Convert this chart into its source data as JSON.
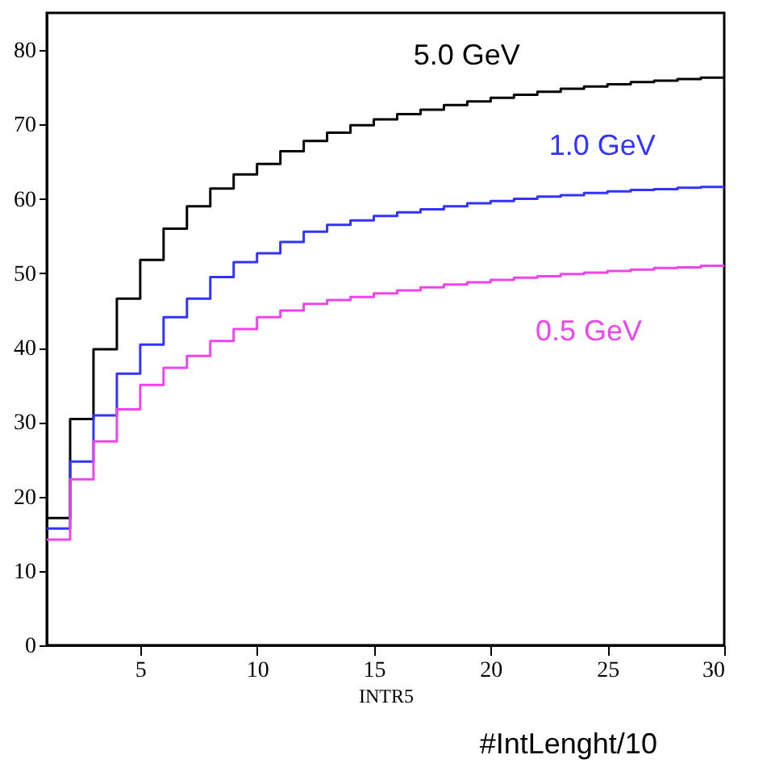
{
  "chart_data": {
    "type": "step",
    "xlabel": "INTR5",
    "x": [
      1,
      2,
      3,
      4,
      5,
      6,
      7,
      8,
      9,
      10,
      11,
      12,
      13,
      14,
      15,
      16,
      17,
      18,
      19,
      20,
      21,
      22,
      23,
      24,
      25,
      26,
      27,
      28,
      29,
      30
    ],
    "series": [
      {
        "name": "5.0 GeV",
        "color": "#000000",
        "values": [
          17.1,
          30.4,
          39.8,
          46.6,
          51.8,
          56.0,
          59.0,
          61.4,
          63.3,
          64.7,
          66.4,
          67.8,
          68.9,
          69.9,
          70.7,
          71.4,
          72.0,
          72.6,
          73.1,
          73.6,
          74.0,
          74.4,
          74.8,
          75.1,
          75.4,
          75.7,
          75.9,
          76.1,
          76.3,
          76.3
        ]
      },
      {
        "name": "1.0 GeV",
        "color": "#3333ff",
        "values": [
          15.7,
          24.7,
          30.9,
          36.5,
          40.4,
          44.1,
          46.6,
          49.5,
          51.5,
          52.7,
          54.2,
          55.6,
          56.5,
          57.1,
          57.7,
          58.2,
          58.6,
          59.0,
          59.4,
          59.7,
          60.0,
          60.3,
          60.5,
          60.8,
          61.0,
          61.2,
          61.3,
          61.5,
          61.6,
          61.6
        ]
      },
      {
        "name": "0.5 GeV",
        "color": "#ee44ee",
        "values": [
          14.2,
          22.3,
          27.4,
          31.7,
          35.0,
          37.3,
          38.9,
          40.9,
          42.5,
          44.1,
          45.0,
          45.9,
          46.4,
          46.8,
          47.3,
          47.7,
          48.1,
          48.5,
          48.8,
          49.1,
          49.4,
          49.6,
          49.9,
          50.1,
          50.3,
          50.5,
          50.7,
          50.8,
          51.0,
          51.0
        ]
      }
    ],
    "xlim": [
      1,
      30
    ],
    "xticks": [
      5,
      10,
      15,
      20,
      25,
      30
    ],
    "ylim": [
      0,
      85
    ],
    "yticks": [
      0,
      10,
      20,
      30,
      40,
      50,
      60,
      70,
      80
    ],
    "grid": false,
    "annotations": [
      "#IntLenght/10"
    ]
  }
}
